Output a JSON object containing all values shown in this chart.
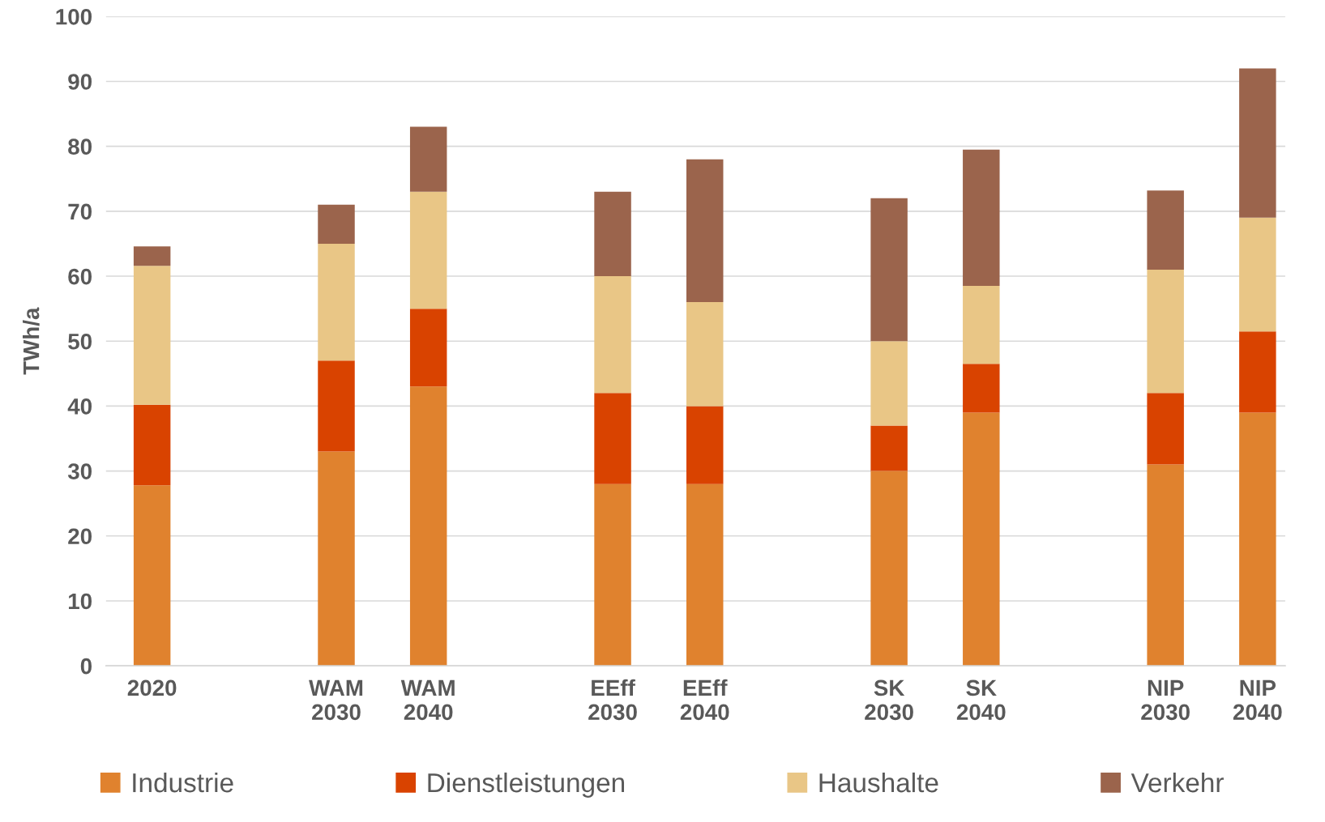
{
  "chart_data": {
    "type": "bar",
    "stacked": true,
    "ylabel": "TWh/a",
    "categories": [
      "2020",
      null,
      "WAM\n2030",
      "WAM\n2040",
      null,
      "EEff\n2030",
      "EEff\n2040",
      null,
      "SK\n2030",
      "SK\n2040",
      null,
      "NIP\n2030",
      "NIP\n2040"
    ],
    "series": [
      {
        "name": "Industrie",
        "color": "#e0822e",
        "values": [
          27.8,
          null,
          33,
          43,
          null,
          28,
          28,
          null,
          30,
          39,
          null,
          31,
          39
        ]
      },
      {
        "name": "Dienstleistungen",
        "color": "#d94300",
        "values": [
          12.4,
          null,
          14,
          12,
          null,
          14,
          12,
          null,
          7,
          7.5,
          null,
          11,
          12.5
        ]
      },
      {
        "name": "Haushalte",
        "color": "#e9c686",
        "values": [
          21.4,
          null,
          18,
          18,
          null,
          18,
          16,
          null,
          13,
          12,
          null,
          19,
          17.5
        ]
      },
      {
        "name": "Verkehr",
        "color": "#9b644c",
        "values": [
          3,
          null,
          6,
          10,
          null,
          13,
          22,
          null,
          22,
          21,
          null,
          12.2,
          23
        ]
      }
    ],
    "ylim": [
      0,
      100
    ],
    "yticks": [
      0,
      10,
      20,
      30,
      40,
      50,
      60,
      70,
      80,
      90,
      100
    ],
    "grid": "y",
    "legend": "bottom"
  }
}
